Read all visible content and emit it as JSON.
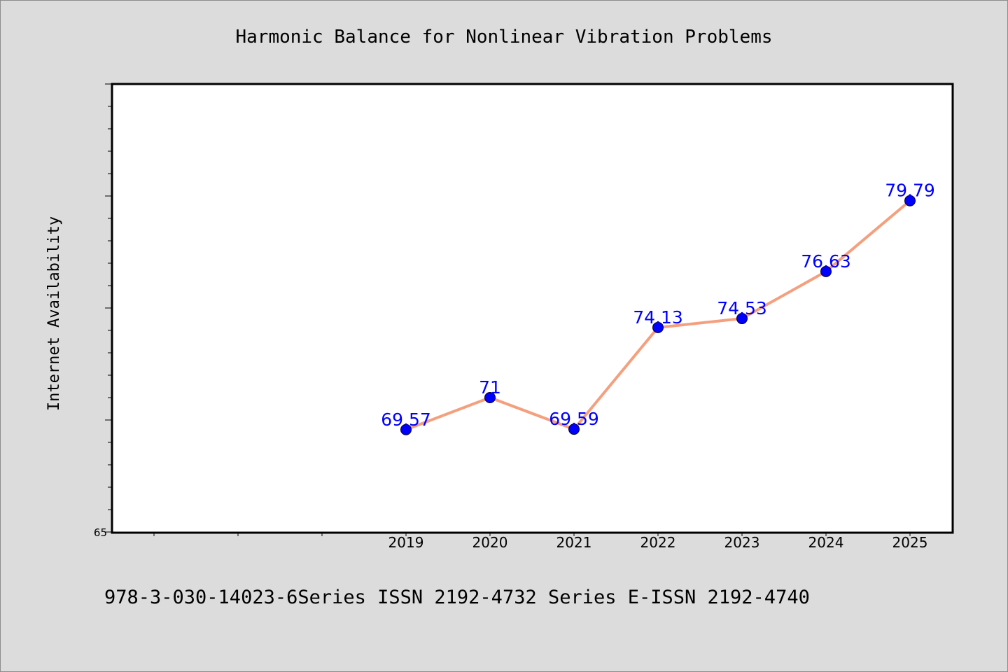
{
  "chart_data": {
    "type": "line",
    "title": "Harmonic Balance for Nonlinear Vibration Problems",
    "xlabel": "",
    "ylabel": "Internet Availability",
    "categories": [
      "2019",
      "2020",
      "2021",
      "2022",
      "2023",
      "2024",
      "2025"
    ],
    "values": [
      69.57,
      71,
      69.59,
      74.13,
      74.53,
      76.63,
      79.79
    ],
    "data_labels": [
      "69.57",
      "71",
      "69.59",
      "74.13",
      "74.53",
      "76.63",
      "79.79"
    ],
    "ylim": [
      65,
      85
    ],
    "y_tick_labels": [
      "65"
    ],
    "grid": false,
    "line_color": "#f4a07e",
    "marker_color": "#0000ff",
    "label_color": "#0000ff"
  },
  "footer": {
    "text": "978-3-030-14023-6Series ISSN 2192-4732 Series E-ISSN 2192-4740"
  }
}
